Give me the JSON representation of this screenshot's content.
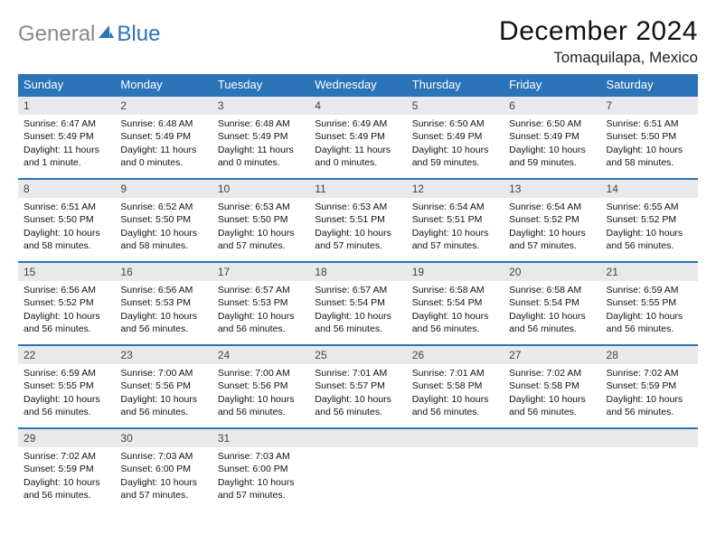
{
  "logo": {
    "gray": "General",
    "blue": "Blue"
  },
  "title": "December 2024",
  "location": "Tomaquilapa, Mexico",
  "colors": {
    "header_bg": "#2b74b8",
    "header_text": "#ffffff",
    "daynum_bg": "#e7e9eb",
    "row_border": "#2b74b8",
    "page_bg": "#ffffff"
  },
  "font": {
    "body_size_pt": 10.5,
    "title_size_pt": 30,
    "location_size_pt": 17,
    "dayhead_size_pt": 13
  },
  "day_names": [
    "Sunday",
    "Monday",
    "Tuesday",
    "Wednesday",
    "Thursday",
    "Friday",
    "Saturday"
  ],
  "weeks": [
    [
      {
        "n": "1",
        "sr": "Sunrise: 6:47 AM",
        "ss": "Sunset: 5:49 PM",
        "d1": "Daylight: 11 hours",
        "d2": "and 1 minute."
      },
      {
        "n": "2",
        "sr": "Sunrise: 6:48 AM",
        "ss": "Sunset: 5:49 PM",
        "d1": "Daylight: 11 hours",
        "d2": "and 0 minutes."
      },
      {
        "n": "3",
        "sr": "Sunrise: 6:48 AM",
        "ss": "Sunset: 5:49 PM",
        "d1": "Daylight: 11 hours",
        "d2": "and 0 minutes."
      },
      {
        "n": "4",
        "sr": "Sunrise: 6:49 AM",
        "ss": "Sunset: 5:49 PM",
        "d1": "Daylight: 11 hours",
        "d2": "and 0 minutes."
      },
      {
        "n": "5",
        "sr": "Sunrise: 6:50 AM",
        "ss": "Sunset: 5:49 PM",
        "d1": "Daylight: 10 hours",
        "d2": "and 59 minutes."
      },
      {
        "n": "6",
        "sr": "Sunrise: 6:50 AM",
        "ss": "Sunset: 5:49 PM",
        "d1": "Daylight: 10 hours",
        "d2": "and 59 minutes."
      },
      {
        "n": "7",
        "sr": "Sunrise: 6:51 AM",
        "ss": "Sunset: 5:50 PM",
        "d1": "Daylight: 10 hours",
        "d2": "and 58 minutes."
      }
    ],
    [
      {
        "n": "8",
        "sr": "Sunrise: 6:51 AM",
        "ss": "Sunset: 5:50 PM",
        "d1": "Daylight: 10 hours",
        "d2": "and 58 minutes."
      },
      {
        "n": "9",
        "sr": "Sunrise: 6:52 AM",
        "ss": "Sunset: 5:50 PM",
        "d1": "Daylight: 10 hours",
        "d2": "and 58 minutes."
      },
      {
        "n": "10",
        "sr": "Sunrise: 6:53 AM",
        "ss": "Sunset: 5:50 PM",
        "d1": "Daylight: 10 hours",
        "d2": "and 57 minutes."
      },
      {
        "n": "11",
        "sr": "Sunrise: 6:53 AM",
        "ss": "Sunset: 5:51 PM",
        "d1": "Daylight: 10 hours",
        "d2": "and 57 minutes."
      },
      {
        "n": "12",
        "sr": "Sunrise: 6:54 AM",
        "ss": "Sunset: 5:51 PM",
        "d1": "Daylight: 10 hours",
        "d2": "and 57 minutes."
      },
      {
        "n": "13",
        "sr": "Sunrise: 6:54 AM",
        "ss": "Sunset: 5:52 PM",
        "d1": "Daylight: 10 hours",
        "d2": "and 57 minutes."
      },
      {
        "n": "14",
        "sr": "Sunrise: 6:55 AM",
        "ss": "Sunset: 5:52 PM",
        "d1": "Daylight: 10 hours",
        "d2": "and 56 minutes."
      }
    ],
    [
      {
        "n": "15",
        "sr": "Sunrise: 6:56 AM",
        "ss": "Sunset: 5:52 PM",
        "d1": "Daylight: 10 hours",
        "d2": "and 56 minutes."
      },
      {
        "n": "16",
        "sr": "Sunrise: 6:56 AM",
        "ss": "Sunset: 5:53 PM",
        "d1": "Daylight: 10 hours",
        "d2": "and 56 minutes."
      },
      {
        "n": "17",
        "sr": "Sunrise: 6:57 AM",
        "ss": "Sunset: 5:53 PM",
        "d1": "Daylight: 10 hours",
        "d2": "and 56 minutes."
      },
      {
        "n": "18",
        "sr": "Sunrise: 6:57 AM",
        "ss": "Sunset: 5:54 PM",
        "d1": "Daylight: 10 hours",
        "d2": "and 56 minutes."
      },
      {
        "n": "19",
        "sr": "Sunrise: 6:58 AM",
        "ss": "Sunset: 5:54 PM",
        "d1": "Daylight: 10 hours",
        "d2": "and 56 minutes."
      },
      {
        "n": "20",
        "sr": "Sunrise: 6:58 AM",
        "ss": "Sunset: 5:54 PM",
        "d1": "Daylight: 10 hours",
        "d2": "and 56 minutes."
      },
      {
        "n": "21",
        "sr": "Sunrise: 6:59 AM",
        "ss": "Sunset: 5:55 PM",
        "d1": "Daylight: 10 hours",
        "d2": "and 56 minutes."
      }
    ],
    [
      {
        "n": "22",
        "sr": "Sunrise: 6:59 AM",
        "ss": "Sunset: 5:55 PM",
        "d1": "Daylight: 10 hours",
        "d2": "and 56 minutes."
      },
      {
        "n": "23",
        "sr": "Sunrise: 7:00 AM",
        "ss": "Sunset: 5:56 PM",
        "d1": "Daylight: 10 hours",
        "d2": "and 56 minutes."
      },
      {
        "n": "24",
        "sr": "Sunrise: 7:00 AM",
        "ss": "Sunset: 5:56 PM",
        "d1": "Daylight: 10 hours",
        "d2": "and 56 minutes."
      },
      {
        "n": "25",
        "sr": "Sunrise: 7:01 AM",
        "ss": "Sunset: 5:57 PM",
        "d1": "Daylight: 10 hours",
        "d2": "and 56 minutes."
      },
      {
        "n": "26",
        "sr": "Sunrise: 7:01 AM",
        "ss": "Sunset: 5:58 PM",
        "d1": "Daylight: 10 hours",
        "d2": "and 56 minutes."
      },
      {
        "n": "27",
        "sr": "Sunrise: 7:02 AM",
        "ss": "Sunset: 5:58 PM",
        "d1": "Daylight: 10 hours",
        "d2": "and 56 minutes."
      },
      {
        "n": "28",
        "sr": "Sunrise: 7:02 AM",
        "ss": "Sunset: 5:59 PM",
        "d1": "Daylight: 10 hours",
        "d2": "and 56 minutes."
      }
    ],
    [
      {
        "n": "29",
        "sr": "Sunrise: 7:02 AM",
        "ss": "Sunset: 5:59 PM",
        "d1": "Daylight: 10 hours",
        "d2": "and 56 minutes."
      },
      {
        "n": "30",
        "sr": "Sunrise: 7:03 AM",
        "ss": "Sunset: 6:00 PM",
        "d1": "Daylight: 10 hours",
        "d2": "and 57 minutes."
      },
      {
        "n": "31",
        "sr": "Sunrise: 7:03 AM",
        "ss": "Sunset: 6:00 PM",
        "d1": "Daylight: 10 hours",
        "d2": "and 57 minutes."
      },
      {
        "empty": true
      },
      {
        "empty": true
      },
      {
        "empty": true
      },
      {
        "empty": true
      }
    ]
  ]
}
